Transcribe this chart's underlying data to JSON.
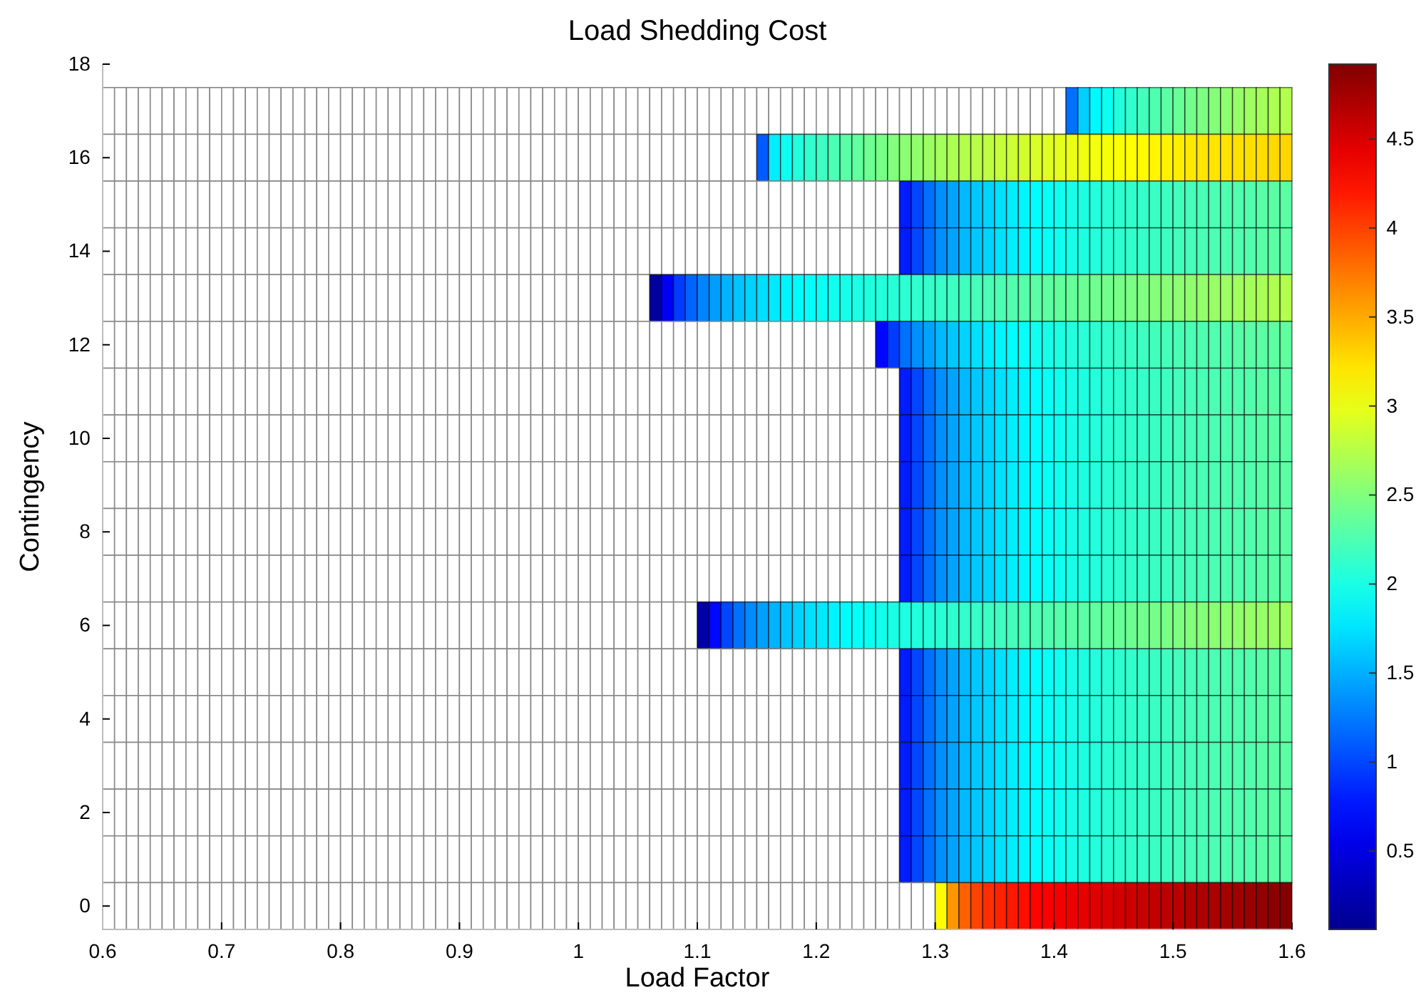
{
  "chart_data": {
    "type": "heatmap",
    "title": "Load Shedding Cost",
    "xlabel": "Load Factor",
    "ylabel": "Contingency",
    "x": [
      0.605,
      0.615,
      0.625,
      0.635,
      0.645,
      0.655,
      0.665,
      0.675,
      0.685,
      0.695,
      0.705,
      0.715,
      0.725,
      0.735,
      0.745,
      0.755,
      0.765,
      0.775,
      0.785,
      0.795,
      0.805,
      0.815,
      0.825,
      0.835,
      0.845,
      0.855,
      0.865,
      0.875,
      0.885,
      0.895,
      0.905,
      0.915,
      0.925,
      0.935,
      0.945,
      0.955,
      0.965,
      0.975,
      0.985,
      0.995,
      1.005,
      1.015,
      1.025,
      1.035,
      1.045,
      1.055,
      1.065,
      1.075,
      1.085,
      1.095,
      1.105,
      1.115,
      1.125,
      1.135,
      1.145,
      1.155,
      1.165,
      1.175,
      1.185,
      1.195,
      1.205,
      1.215,
      1.225,
      1.235,
      1.245,
      1.255,
      1.265,
      1.275,
      1.285,
      1.295,
      1.305,
      1.315,
      1.325,
      1.335,
      1.345,
      1.355,
      1.365,
      1.375,
      1.385,
      1.395,
      1.405,
      1.415,
      1.425,
      1.435,
      1.445,
      1.455,
      1.465,
      1.475,
      1.485,
      1.495,
      1.505,
      1.515,
      1.525,
      1.535,
      1.545,
      1.555,
      1.565,
      1.575,
      1.585,
      1.595
    ],
    "xlim": [
      0.6,
      1.6
    ],
    "xticks": [
      0.6,
      0.7,
      0.8,
      0.9,
      1,
      1.1,
      1.2,
      1.3,
      1.4,
      1.5,
      1.6
    ],
    "ylim": [
      -0.5,
      18
    ],
    "yticks": [
      0,
      2,
      4,
      6,
      8,
      10,
      12,
      14,
      16,
      18
    ],
    "clim": [
      0.06,
      4.92
    ],
    "cticks": [
      0.5,
      1,
      1.5,
      2,
      2.5,
      3,
      3.5,
      4,
      4.5
    ],
    "cells": [
      [
        null,
        null,
        null,
        null,
        null,
        null,
        null,
        null,
        null,
        null,
        null,
        null,
        null,
        null,
        null,
        null,
        null,
        null,
        null,
        null,
        null,
        null,
        null,
        null,
        null,
        null,
        null,
        null,
        null,
        null,
        null,
        null,
        null,
        null,
        null,
        null,
        null,
        null,
        null,
        null,
        null,
        null,
        null,
        null,
        null,
        null,
        null,
        null,
        null,
        null,
        null,
        null,
        null,
        null,
        null,
        null,
        null,
        null,
        null,
        null,
        null,
        null,
        null,
        null,
        null,
        null,
        null,
        null,
        null,
        null,
        null,
        null,
        null,
        null,
        null,
        null,
        null,
        null,
        null,
        null,
        null,
        1.2,
        1.65,
        1.85,
        1.95,
        2.05,
        2.12,
        2.2,
        2.26,
        2.32,
        2.38,
        2.43,
        2.48,
        2.52,
        2.56,
        2.6,
        2.64,
        2.67,
        2.7,
        2.73
      ],
      [
        null,
        null,
        null,
        null,
        null,
        null,
        null,
        null,
        null,
        null,
        null,
        null,
        null,
        null,
        null,
        null,
        null,
        null,
        null,
        null,
        null,
        null,
        null,
        null,
        null,
        null,
        null,
        null,
        null,
        null,
        null,
        null,
        null,
        null,
        null,
        null,
        null,
        null,
        null,
        null,
        null,
        null,
        null,
        null,
        null,
        null,
        null,
        null,
        null,
        null,
        null,
        null,
        null,
        null,
        null,
        1.1,
        1.8,
        1.95,
        2.05,
        2.12,
        2.18,
        2.24,
        2.3,
        2.35,
        2.4,
        2.45,
        2.5,
        2.54,
        2.58,
        2.62,
        2.66,
        2.7,
        2.73,
        2.76,
        2.79,
        2.82,
        2.85,
        2.88,
        2.91,
        2.94,
        2.97,
        3.0,
        3.02,
        3.04,
        3.06,
        3.08,
        3.1,
        3.12,
        3.14,
        3.16,
        3.18,
        3.2,
        3.21,
        3.22,
        3.23,
        3.24,
        3.25,
        3.26,
        3.28,
        3.3
      ],
      [
        null,
        null,
        null,
        null,
        null,
        null,
        null,
        null,
        null,
        null,
        null,
        null,
        null,
        null,
        null,
        null,
        null,
        null,
        null,
        null,
        null,
        null,
        null,
        null,
        null,
        null,
        null,
        null,
        null,
        null,
        null,
        null,
        null,
        null,
        null,
        null,
        null,
        null,
        null,
        null,
        null,
        null,
        null,
        null,
        null,
        null,
        null,
        null,
        null,
        null,
        null,
        null,
        null,
        null,
        null,
        null,
        null,
        null,
        null,
        null,
        null,
        null,
        null,
        null,
        null,
        null,
        null,
        0.8,
        1.0,
        1.2,
        1.35,
        1.45,
        1.55,
        1.62,
        1.68,
        1.74,
        1.79,
        1.84,
        1.88,
        1.92,
        1.96,
        1.99,
        2.02,
        2.05,
        2.08,
        2.1,
        2.12,
        2.14,
        2.16,
        2.18,
        2.2,
        2.21,
        2.23,
        2.24,
        2.26,
        2.27,
        2.28,
        2.3,
        2.31,
        2.32
      ],
      [
        null,
        null,
        null,
        null,
        null,
        null,
        null,
        null,
        null,
        null,
        null,
        null,
        null,
        null,
        null,
        null,
        null,
        null,
        null,
        null,
        null,
        null,
        null,
        null,
        null,
        null,
        null,
        null,
        null,
        null,
        null,
        null,
        null,
        null,
        null,
        null,
        null,
        null,
        null,
        null,
        null,
        null,
        null,
        null,
        null,
        null,
        null,
        null,
        null,
        null,
        null,
        null,
        null,
        null,
        null,
        null,
        null,
        null,
        null,
        null,
        null,
        null,
        null,
        null,
        null,
        null,
        null,
        0.8,
        1.0,
        1.2,
        1.35,
        1.45,
        1.55,
        1.62,
        1.68,
        1.74,
        1.79,
        1.84,
        1.88,
        1.92,
        1.96,
        1.99,
        2.02,
        2.05,
        2.08,
        2.1,
        2.12,
        2.14,
        2.16,
        2.18,
        2.2,
        2.21,
        2.23,
        2.24,
        2.26,
        2.27,
        2.28,
        2.3,
        2.31,
        2.32
      ],
      [
        null,
        null,
        null,
        null,
        null,
        null,
        null,
        null,
        null,
        null,
        null,
        null,
        null,
        null,
        null,
        null,
        null,
        null,
        null,
        null,
        null,
        null,
        null,
        null,
        null,
        null,
        null,
        null,
        null,
        null,
        null,
        null,
        null,
        null,
        null,
        null,
        null,
        null,
        null,
        null,
        null,
        null,
        null,
        null,
        null,
        null,
        0.15,
        0.6,
        0.95,
        1.15,
        1.3,
        1.42,
        1.52,
        1.6,
        1.67,
        1.73,
        1.78,
        1.83,
        1.87,
        1.9,
        1.93,
        1.96,
        1.99,
        2.01,
        2.03,
        2.05,
        2.07,
        2.09,
        2.11,
        2.13,
        2.15,
        2.17,
        2.19,
        2.21,
        2.23,
        2.25,
        2.27,
        2.29,
        2.31,
        2.33,
        2.35,
        2.37,
        2.39,
        2.41,
        2.43,
        2.45,
        2.47,
        2.49,
        2.51,
        2.53,
        2.55,
        2.57,
        2.59,
        2.61,
        2.63,
        2.65,
        2.67,
        2.69,
        2.71,
        2.73
      ],
      [
        null,
        null,
        null,
        null,
        null,
        null,
        null,
        null,
        null,
        null,
        null,
        null,
        null,
        null,
        null,
        null,
        null,
        null,
        null,
        null,
        null,
        null,
        null,
        null,
        null,
        null,
        null,
        null,
        null,
        null,
        null,
        null,
        null,
        null,
        null,
        null,
        null,
        null,
        null,
        null,
        null,
        null,
        null,
        null,
        null,
        null,
        null,
        null,
        null,
        null,
        null,
        null,
        null,
        null,
        null,
        null,
        null,
        null,
        null,
        null,
        null,
        null,
        null,
        null,
        null,
        0.7,
        0.95,
        1.2,
        1.35,
        1.45,
        1.55,
        1.62,
        1.68,
        1.74,
        1.79,
        1.84,
        1.88,
        1.92,
        1.96,
        1.99,
        2.02,
        2.05,
        2.08,
        2.1,
        2.12,
        2.14,
        2.16,
        2.18,
        2.2,
        2.21,
        2.23,
        2.24,
        2.26,
        2.27,
        2.28,
        2.3,
        2.31,
        2.32,
        2.33,
        2.34
      ],
      [
        null,
        null,
        null,
        null,
        null,
        null,
        null,
        null,
        null,
        null,
        null,
        null,
        null,
        null,
        null,
        null,
        null,
        null,
        null,
        null,
        null,
        null,
        null,
        null,
        null,
        null,
        null,
        null,
        null,
        null,
        null,
        null,
        null,
        null,
        null,
        null,
        null,
        null,
        null,
        null,
        null,
        null,
        null,
        null,
        null,
        null,
        null,
        null,
        null,
        null,
        null,
        null,
        null,
        null,
        null,
        null,
        null,
        null,
        null,
        null,
        null,
        null,
        null,
        null,
        null,
        null,
        null,
        0.8,
        1.0,
        1.2,
        1.35,
        1.45,
        1.55,
        1.62,
        1.68,
        1.74,
        1.79,
        1.84,
        1.88,
        1.92,
        1.96,
        1.99,
        2.02,
        2.05,
        2.08,
        2.1,
        2.12,
        2.14,
        2.16,
        2.18,
        2.2,
        2.21,
        2.23,
        2.24,
        2.26,
        2.27,
        2.28,
        2.3,
        2.31,
        2.32
      ],
      [
        null,
        null,
        null,
        null,
        null,
        null,
        null,
        null,
        null,
        null,
        null,
        null,
        null,
        null,
        null,
        null,
        null,
        null,
        null,
        null,
        null,
        null,
        null,
        null,
        null,
        null,
        null,
        null,
        null,
        null,
        null,
        null,
        null,
        null,
        null,
        null,
        null,
        null,
        null,
        null,
        null,
        null,
        null,
        null,
        null,
        null,
        null,
        null,
        null,
        null,
        null,
        null,
        null,
        null,
        null,
        null,
        null,
        null,
        null,
        null,
        null,
        null,
        null,
        null,
        null,
        null,
        null,
        0.8,
        1.0,
        1.2,
        1.35,
        1.45,
        1.55,
        1.62,
        1.68,
        1.74,
        1.79,
        1.84,
        1.88,
        1.92,
        1.96,
        1.99,
        2.02,
        2.05,
        2.08,
        2.1,
        2.12,
        2.14,
        2.16,
        2.18,
        2.2,
        2.21,
        2.23,
        2.24,
        2.26,
        2.27,
        2.28,
        2.3,
        2.31,
        2.32
      ],
      [
        null,
        null,
        null,
        null,
        null,
        null,
        null,
        null,
        null,
        null,
        null,
        null,
        null,
        null,
        null,
        null,
        null,
        null,
        null,
        null,
        null,
        null,
        null,
        null,
        null,
        null,
        null,
        null,
        null,
        null,
        null,
        null,
        null,
        null,
        null,
        null,
        null,
        null,
        null,
        null,
        null,
        null,
        null,
        null,
        null,
        null,
        null,
        null,
        null,
        null,
        null,
        null,
        null,
        null,
        null,
        null,
        null,
        null,
        null,
        null,
        null,
        null,
        null,
        null,
        null,
        null,
        null,
        0.8,
        1.0,
        1.2,
        1.35,
        1.45,
        1.55,
        1.62,
        1.68,
        1.74,
        1.79,
        1.84,
        1.88,
        1.92,
        1.96,
        1.99,
        2.02,
        2.05,
        2.08,
        2.1,
        2.12,
        2.14,
        2.16,
        2.18,
        2.2,
        2.21,
        2.23,
        2.24,
        2.26,
        2.27,
        2.28,
        2.3,
        2.31,
        2.32
      ],
      [
        null,
        null,
        null,
        null,
        null,
        null,
        null,
        null,
        null,
        null,
        null,
        null,
        null,
        null,
        null,
        null,
        null,
        null,
        null,
        null,
        null,
        null,
        null,
        null,
        null,
        null,
        null,
        null,
        null,
        null,
        null,
        null,
        null,
        null,
        null,
        null,
        null,
        null,
        null,
        null,
        null,
        null,
        null,
        null,
        null,
        null,
        null,
        null,
        null,
        null,
        null,
        null,
        null,
        null,
        null,
        null,
        null,
        null,
        null,
        null,
        null,
        null,
        null,
        null,
        null,
        null,
        null,
        0.8,
        1.0,
        1.2,
        1.35,
        1.45,
        1.55,
        1.62,
        1.68,
        1.74,
        1.79,
        1.84,
        1.88,
        1.92,
        1.96,
        1.99,
        2.02,
        2.05,
        2.08,
        2.1,
        2.12,
        2.14,
        2.16,
        2.18,
        2.2,
        2.21,
        2.23,
        2.24,
        2.26,
        2.27,
        2.28,
        2.3,
        2.31,
        2.32
      ],
      [
        null,
        null,
        null,
        null,
        null,
        null,
        null,
        null,
        null,
        null,
        null,
        null,
        null,
        null,
        null,
        null,
        null,
        null,
        null,
        null,
        null,
        null,
        null,
        null,
        null,
        null,
        null,
        null,
        null,
        null,
        null,
        null,
        null,
        null,
        null,
        null,
        null,
        null,
        null,
        null,
        null,
        null,
        null,
        null,
        null,
        null,
        null,
        null,
        null,
        null,
        null,
        null,
        null,
        null,
        null,
        null,
        null,
        null,
        null,
        null,
        null,
        null,
        null,
        null,
        null,
        null,
        null,
        0.8,
        1.0,
        1.2,
        1.35,
        1.45,
        1.55,
        1.62,
        1.68,
        1.74,
        1.79,
        1.84,
        1.88,
        1.92,
        1.96,
        1.99,
        2.02,
        2.05,
        2.08,
        2.1,
        2.12,
        2.14,
        2.16,
        2.18,
        2.2,
        2.21,
        2.23,
        2.24,
        2.26,
        2.27,
        2.28,
        2.3,
        2.31,
        2.32
      ],
      [
        null,
        null,
        null,
        null,
        null,
        null,
        null,
        null,
        null,
        null,
        null,
        null,
        null,
        null,
        null,
        null,
        null,
        null,
        null,
        null,
        null,
        null,
        null,
        null,
        null,
        null,
        null,
        null,
        null,
        null,
        null,
        null,
        null,
        null,
        null,
        null,
        null,
        null,
        null,
        null,
        null,
        null,
        null,
        null,
        null,
        null,
        null,
        null,
        null,
        null,
        0.2,
        0.7,
        1.0,
        1.2,
        1.33,
        1.43,
        1.52,
        1.6,
        1.67,
        1.73,
        1.78,
        1.83,
        1.87,
        1.91,
        1.94,
        1.97,
        2.0,
        2.02,
        2.04,
        2.06,
        2.08,
        2.1,
        2.12,
        2.14,
        2.16,
        2.18,
        2.2,
        2.22,
        2.24,
        2.26,
        2.28,
        2.3,
        2.32,
        2.34,
        2.36,
        2.38,
        2.4,
        2.42,
        2.44,
        2.46,
        2.48,
        2.5,
        2.52,
        2.54,
        2.56,
        2.58,
        2.6,
        2.6,
        2.62,
        2.64
      ],
      [
        null,
        null,
        null,
        null,
        null,
        null,
        null,
        null,
        null,
        null,
        null,
        null,
        null,
        null,
        null,
        null,
        null,
        null,
        null,
        null,
        null,
        null,
        null,
        null,
        null,
        null,
        null,
        null,
        null,
        null,
        null,
        null,
        null,
        null,
        null,
        null,
        null,
        null,
        null,
        null,
        null,
        null,
        null,
        null,
        null,
        null,
        null,
        null,
        null,
        null,
        null,
        null,
        null,
        null,
        null,
        null,
        null,
        null,
        null,
        null,
        null,
        null,
        null,
        null,
        null,
        null,
        null,
        0.8,
        1.0,
        1.2,
        1.35,
        1.45,
        1.55,
        1.62,
        1.68,
        1.74,
        1.79,
        1.84,
        1.88,
        1.92,
        1.96,
        1.99,
        2.02,
        2.05,
        2.08,
        2.1,
        2.12,
        2.14,
        2.16,
        2.18,
        2.2,
        2.21,
        2.23,
        2.24,
        2.26,
        2.27,
        2.28,
        2.3,
        2.31,
        2.32
      ],
      [
        null,
        null,
        null,
        null,
        null,
        null,
        null,
        null,
        null,
        null,
        null,
        null,
        null,
        null,
        null,
        null,
        null,
        null,
        null,
        null,
        null,
        null,
        null,
        null,
        null,
        null,
        null,
        null,
        null,
        null,
        null,
        null,
        null,
        null,
        null,
        null,
        null,
        null,
        null,
        null,
        null,
        null,
        null,
        null,
        null,
        null,
        null,
        null,
        null,
        null,
        null,
        null,
        null,
        null,
        null,
        null,
        null,
        null,
        null,
        null,
        null,
        null,
        null,
        null,
        null,
        null,
        null,
        0.8,
        1.0,
        1.2,
        1.35,
        1.45,
        1.55,
        1.62,
        1.68,
        1.74,
        1.79,
        1.84,
        1.88,
        1.92,
        1.96,
        1.99,
        2.02,
        2.05,
        2.08,
        2.1,
        2.12,
        2.14,
        2.16,
        2.18,
        2.2,
        2.21,
        2.23,
        2.24,
        2.26,
        2.27,
        2.28,
        2.3,
        2.31,
        2.32
      ],
      [
        null,
        null,
        null,
        null,
        null,
        null,
        null,
        null,
        null,
        null,
        null,
        null,
        null,
        null,
        null,
        null,
        null,
        null,
        null,
        null,
        null,
        null,
        null,
        null,
        null,
        null,
        null,
        null,
        null,
        null,
        null,
        null,
        null,
        null,
        null,
        null,
        null,
        null,
        null,
        null,
        null,
        null,
        null,
        null,
        null,
        null,
        null,
        null,
        null,
        null,
        null,
        null,
        null,
        null,
        null,
        null,
        null,
        null,
        null,
        null,
        null,
        null,
        null,
        null,
        null,
        null,
        null,
        0.8,
        1.0,
        1.2,
        1.35,
        1.45,
        1.55,
        1.62,
        1.68,
        1.74,
        1.79,
        1.84,
        1.88,
        1.92,
        1.96,
        1.99,
        2.02,
        2.05,
        2.08,
        2.1,
        2.12,
        2.14,
        2.16,
        2.18,
        2.2,
        2.21,
        2.23,
        2.24,
        2.26,
        2.27,
        2.28,
        2.3,
        2.31,
        2.32
      ],
      [
        null,
        null,
        null,
        null,
        null,
        null,
        null,
        null,
        null,
        null,
        null,
        null,
        null,
        null,
        null,
        null,
        null,
        null,
        null,
        null,
        null,
        null,
        null,
        null,
        null,
        null,
        null,
        null,
        null,
        null,
        null,
        null,
        null,
        null,
        null,
        null,
        null,
        null,
        null,
        null,
        null,
        null,
        null,
        null,
        null,
        null,
        null,
        null,
        null,
        null,
        null,
        null,
        null,
        null,
        null,
        null,
        null,
        null,
        null,
        null,
        null,
        null,
        null,
        null,
        null,
        null,
        null,
        0.8,
        1.0,
        1.2,
        1.35,
        1.45,
        1.55,
        1.62,
        1.68,
        1.74,
        1.79,
        1.84,
        1.88,
        1.92,
        1.96,
        1.99,
        2.02,
        2.05,
        2.08,
        2.1,
        2.12,
        2.14,
        2.16,
        2.18,
        2.2,
        2.21,
        2.23,
        2.24,
        2.26,
        2.27,
        2.28,
        2.3,
        2.31,
        2.32
      ],
      [
        null,
        null,
        null,
        null,
        null,
        null,
        null,
        null,
        null,
        null,
        null,
        null,
        null,
        null,
        null,
        null,
        null,
        null,
        null,
        null,
        null,
        null,
        null,
        null,
        null,
        null,
        null,
        null,
        null,
        null,
        null,
        null,
        null,
        null,
        null,
        null,
        null,
        null,
        null,
        null,
        null,
        null,
        null,
        null,
        null,
        null,
        null,
        null,
        null,
        null,
        null,
        null,
        null,
        null,
        null,
        null,
        null,
        null,
        null,
        null,
        null,
        null,
        null,
        null,
        null,
        null,
        null,
        0.8,
        1.0,
        1.2,
        1.35,
        1.45,
        1.55,
        1.62,
        1.68,
        1.74,
        1.79,
        1.84,
        1.88,
        1.92,
        1.96,
        1.99,
        2.02,
        2.05,
        2.08,
        2.1,
        2.12,
        2.14,
        2.16,
        2.18,
        2.2,
        2.21,
        2.23,
        2.24,
        2.26,
        2.27,
        2.28,
        2.3,
        2.31,
        2.32
      ],
      [
        null,
        null,
        null,
        null,
        null,
        null,
        null,
        null,
        null,
        null,
        null,
        null,
        null,
        null,
        null,
        null,
        null,
        null,
        null,
        null,
        null,
        null,
        null,
        null,
        null,
        null,
        null,
        null,
        null,
        null,
        null,
        null,
        null,
        null,
        null,
        null,
        null,
        null,
        null,
        null,
        null,
        null,
        null,
        null,
        null,
        null,
        null,
        null,
        null,
        null,
        null,
        null,
        null,
        null,
        null,
        null,
        null,
        null,
        null,
        null,
        null,
        null,
        null,
        null,
        null,
        null,
        null,
        null,
        null,
        null,
        3.1,
        3.6,
        3.85,
        4.0,
        4.1,
        4.15,
        4.2,
        4.25,
        4.3,
        4.33,
        4.36,
        4.4,
        4.43,
        4.46,
        4.49,
        4.52,
        4.55,
        4.58,
        4.6,
        4.63,
        4.65,
        4.68,
        4.7,
        4.72,
        4.75,
        4.77,
        4.8,
        4.83,
        4.86,
        4.9
      ]
    ]
  }
}
